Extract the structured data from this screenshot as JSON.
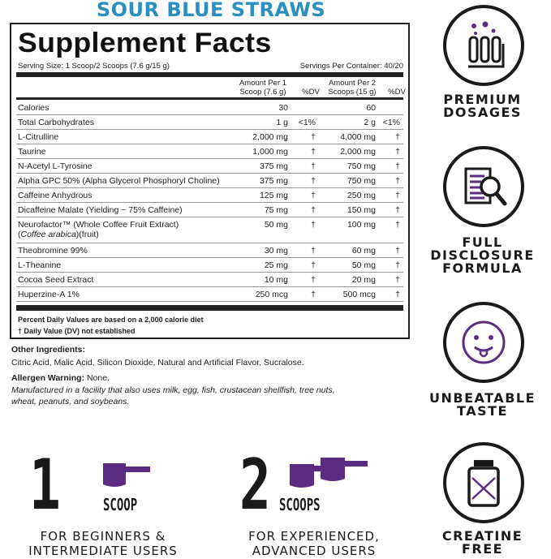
{
  "flavor": "SOUR BLUE STRAWS",
  "facts": {
    "title": "Supplement Facts",
    "serving_size": "Serving Size: 1 Scoop/2 Scoops (7.6 g/15 g)",
    "servings_per_container": "Servings Per Container: 40/20",
    "headers": {
      "amount1_l1": "Amount Per 1",
      "amount1_l2": "Scoop (7.6 g)",
      "dv1": "%DV",
      "amount2_l1": "Amount Per 2",
      "amount2_l2": "Scoops (15 g)",
      "dv2": "%DV"
    },
    "rows": [
      {
        "name": "Calories",
        "a1": "30",
        "d1": "",
        "a2": "60",
        "d2": ""
      },
      {
        "name": "Total Carbohydrates",
        "a1": "1 g",
        "d1": "<1%",
        "a2": "2 g",
        "d2": "<1%"
      },
      {
        "name": "L-Citrulline",
        "a1": "2,000 mg",
        "d1": "†",
        "a2": "4,000 mg",
        "d2": "†"
      },
      {
        "name": "Taurine",
        "a1": "1,000 mg",
        "d1": "†",
        "a2": "2,000 mg",
        "d2": "†"
      },
      {
        "name": "N-Acetyl L-Tyrosine",
        "a1": "375 mg",
        "d1": "†",
        "a2": "750 mg",
        "d2": "†"
      },
      {
        "name": "Alpha GPC 50% (Alpha Glycerol Phosphoryl Choline)",
        "a1": "375 mg",
        "d1": "†",
        "a2": "750 mg",
        "d2": "†"
      },
      {
        "name": "Caffeine Anhydrous",
        "a1": "125 mg",
        "d1": "†",
        "a2": "250 mg",
        "d2": "†"
      },
      {
        "name": "Dicaffeine Malate (Yielding ~ 75% Caffeine)",
        "a1": "75 mg",
        "d1": "†",
        "a2": "150 mg",
        "d2": "†"
      },
      {
        "name": "Neurofactor™ (Whole Coffee Fruit Extract)",
        "name2_italic": "Coffee arabica",
        "name2_rest": ")(fruit)",
        "a1": "50 mg",
        "d1": "†",
        "a2": "100 mg",
        "d2": "†"
      },
      {
        "name": "Theobromine 99%",
        "a1": "30 mg",
        "d1": "†",
        "a2": "60 mg",
        "d2": "†"
      },
      {
        "name": "L-Theanine",
        "a1": "25 mg",
        "d1": "†",
        "a2": "50 mg",
        "d2": "†"
      },
      {
        "name": "Cocoa Seed Extract",
        "a1": "10 mg",
        "d1": "†",
        "a2": "20 mg",
        "d2": "†"
      },
      {
        "name": "Huperzine-A 1%",
        "a1": "250 mcg",
        "d1": "†",
        "a2": "500 mcg",
        "d2": "†"
      }
    ],
    "footnote1": "Percent Daily Values are based on a 2,000 calorie diet",
    "footnote2": "† Daily Value (DV) not established"
  },
  "other": {
    "label": "Other Ingredients:",
    "text": "Citric Acid, Malic Acid, Silicon Dioxide, Natural and Artificial Flavor, Sucralose.",
    "allergen_label": "Allergen Warning:",
    "allergen_value": " None.",
    "facility_l1": "Manufactured in a facility that also uses milk, egg, fish, crustacean shellfish, tree nuts,",
    "facility_l2": "wheat, peanuts, and soybeans."
  },
  "badges": [
    {
      "icon": "test-tubes-icon",
      "l1": "PREMIUM",
      "l2": "DOSAGES"
    },
    {
      "icon": "document-magnifier-icon",
      "l1": "FULL",
      "l2": "DISCLOSURE",
      "l3": "FORMULA"
    },
    {
      "icon": "tongue-face-icon",
      "l1": "UNBEATABLE",
      "l2": "TASTE"
    },
    {
      "icon": "crossed-jar-icon",
      "l1": "CREATINE",
      "l2": "FREE"
    }
  ],
  "dosing": [
    {
      "num": "1",
      "unit": "SCOOP",
      "l1": "FOR BEGINNERS &",
      "l2": "INTERMEDIATE USERS"
    },
    {
      "num": "2",
      "unit": "SCOOPS",
      "l1": "FOR EXPERIENCED,",
      "l2": "ADVANCED USERS"
    }
  ],
  "colors": {
    "flavor": "#2a8fc1",
    "accent_purple": "#5b2d82",
    "ink": "#1a1a1a"
  }
}
